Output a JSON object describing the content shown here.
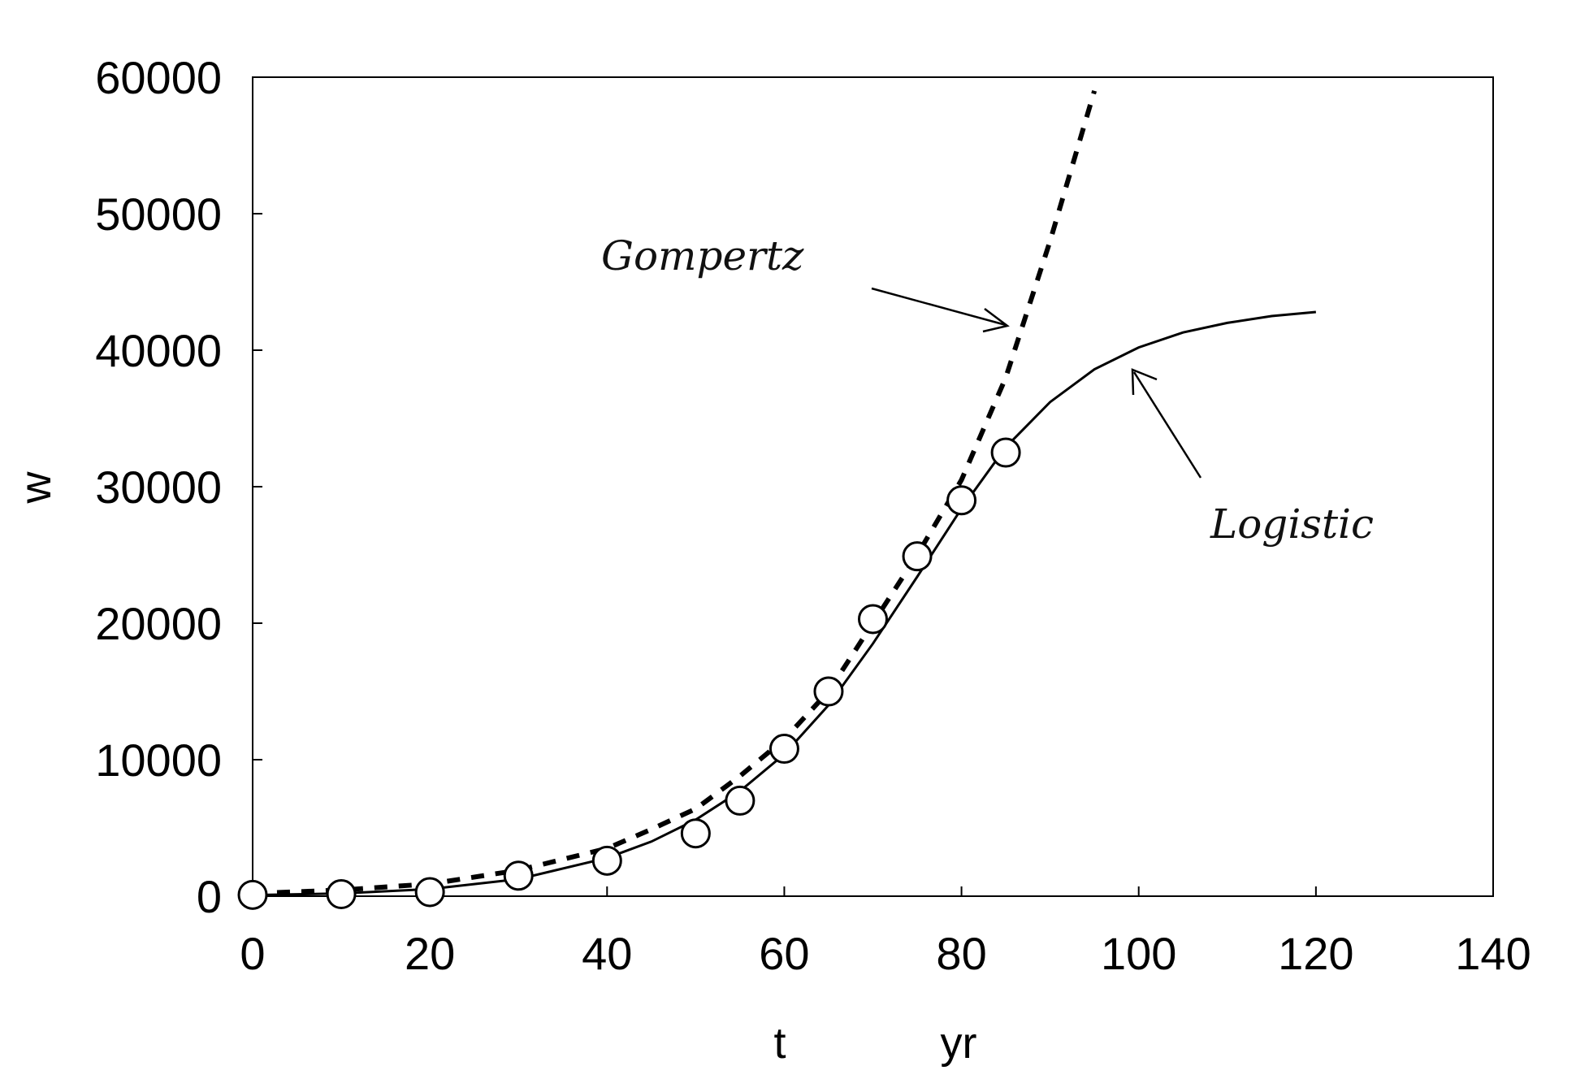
{
  "chart_data": {
    "type": "line",
    "title": "",
    "xlabel": "t",
    "xunit": "yr",
    "ylabel": "w",
    "xlim": [
      0,
      140
    ],
    "ylim": [
      0,
      60000
    ],
    "xticks": [
      0,
      20,
      40,
      60,
      80,
      100,
      120,
      140
    ],
    "yticks": [
      0,
      10000,
      20000,
      30000,
      40000,
      50000,
      60000
    ],
    "grid": false,
    "series": [
      {
        "kind": "observed",
        "marker": "open-circle",
        "x": [
          0,
          10,
          20,
          30,
          40,
          50,
          55,
          60,
          65,
          70,
          75,
          80,
          85
        ],
        "y": [
          100,
          150,
          300,
          1500,
          2600,
          4600,
          7000,
          10800,
          15000,
          20300,
          24900,
          29000,
          32500
        ]
      },
      {
        "name": "Logistic",
        "kind": "fit",
        "style": "solid",
        "x": [
          0,
          10,
          20,
          30,
          40,
          45,
          50,
          55,
          60,
          65,
          70,
          75,
          80,
          85,
          90,
          95,
          100,
          105,
          110,
          115,
          120
        ],
        "y": [
          80,
          200,
          520,
          1250,
          2800,
          4000,
          5600,
          7700,
          10400,
          14000,
          18500,
          23400,
          28400,
          32900,
          36200,
          38600,
          40200,
          41300,
          42000,
          42500,
          42800
        ]
      },
      {
        "name": "Gompertz",
        "kind": "fit",
        "style": "dashed",
        "x": [
          0,
          10,
          20,
          30,
          40,
          45,
          50,
          55,
          60,
          65,
          70,
          75,
          80,
          85,
          90,
          95
        ],
        "y": [
          200,
          450,
          900,
          1900,
          3500,
          4900,
          6400,
          8800,
          11500,
          15000,
          20000,
          25000,
          30500,
          38000,
          48000,
          59000
        ]
      }
    ],
    "annotations": [
      {
        "text": "Gompertz",
        "target_series": "Gompertz"
      },
      {
        "text": "Logistic",
        "target_series": "Logistic"
      }
    ]
  }
}
